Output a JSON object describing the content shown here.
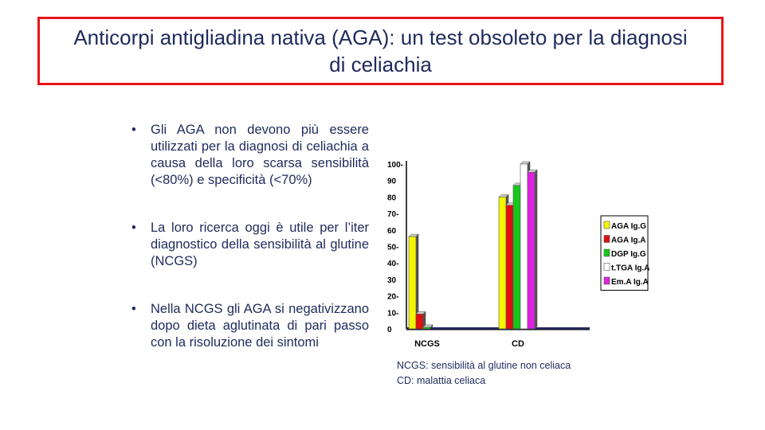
{
  "title": "Anticorpi antigliadina nativa (AGA): un test obsoleto per la diagnosi di celiachia",
  "bullets": [
    "Gli AGA non devono più essere utilizzati per la diagnosi di celiachia a causa della loro scarsa sensibilità (<80%) e specificità (<70%)",
    "La loro ricerca oggi è utile per l’iter diagnostico della sensibilità al glutine (NCGS)",
    "Nella NCGS gli AGA si negativizzano dopo dieta aglutinata di pari passo con la risoluzione dei sintomi"
  ],
  "bullet_symbol": "•",
  "notes": [
    "NCGS: sensibilità al glutine non celiaca",
    "CD: malattia celiaca"
  ],
  "colors": {
    "title_border": "#e8141b",
    "text": "#1f2a5c"
  },
  "chart_data": {
    "type": "bar",
    "categories": [
      "NCGS",
      "CD"
    ],
    "series": [
      {
        "name": "AGA Ig.G",
        "color": "#f5f500",
        "values": [
          56,
          80
        ]
      },
      {
        "name": "AGA Ig.A",
        "color": "#e01010",
        "values": [
          9,
          75
        ]
      },
      {
        "name": "DGP Ig.G",
        "color": "#16c81a",
        "values": [
          1,
          87
        ]
      },
      {
        "name": "t.TGA Ig.A",
        "color": "#ffffff",
        "values": [
          0,
          100
        ]
      },
      {
        "name": "Em.A Ig.A",
        "color": "#e020e0",
        "values": [
          0,
          95
        ]
      }
    ],
    "y_tick_labels": [
      "0",
      "10-",
      "20-",
      "30",
      "40-",
      "50-",
      "60",
      "70-",
      "80",
      "90",
      "100-"
    ],
    "ylim": [
      0,
      100
    ],
    "legend_position": "right"
  }
}
